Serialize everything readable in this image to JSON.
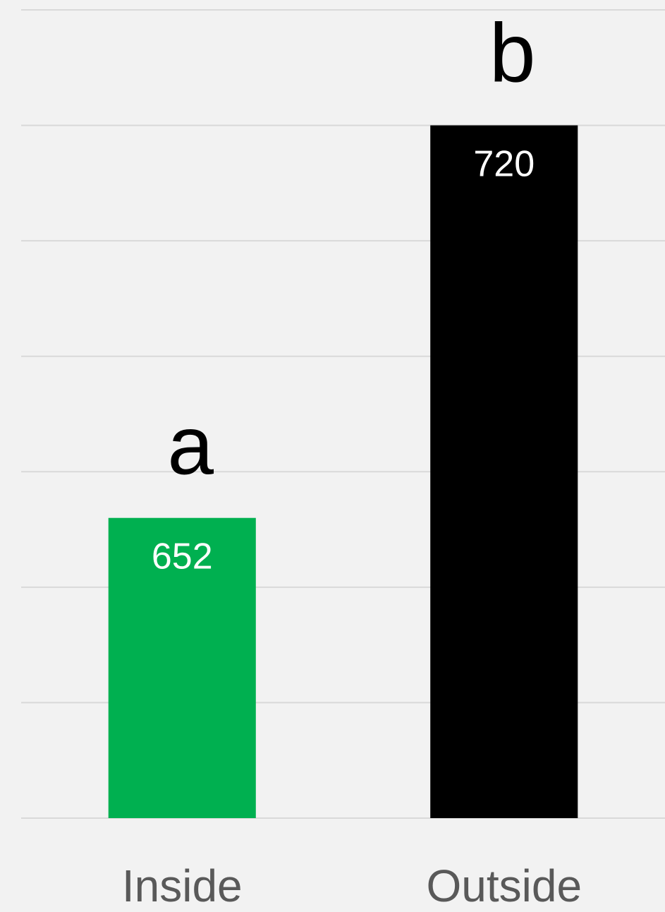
{
  "chart_data": {
    "type": "bar",
    "categories": [
      "Inside",
      "Outside"
    ],
    "values": [
      652,
      720
    ],
    "colors": [
      "#00b050",
      "#000000"
    ],
    "annotations": [
      "a",
      "b"
    ],
    "ylim": [
      600,
      740
    ],
    "yticks": [
      600,
      620,
      640,
      660,
      680,
      700,
      720,
      740
    ],
    "grid": true
  }
}
